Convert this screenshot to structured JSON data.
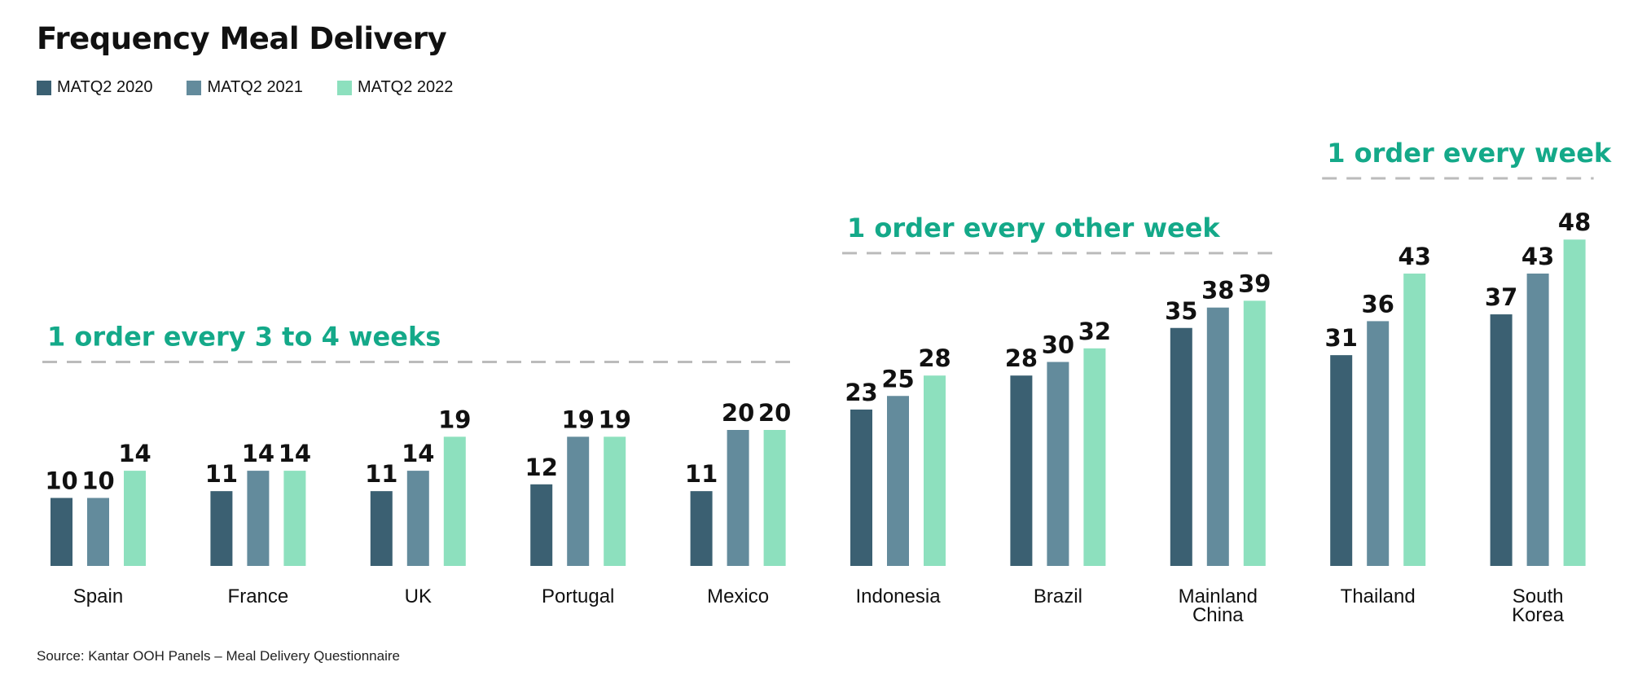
{
  "title": "Frequency Meal Delivery",
  "source": "Source: Kantar OOH Panels – Meal Delivery Questionnaire",
  "colors": {
    "series": [
      "#3b6072",
      "#638b9c",
      "#8de0be"
    ],
    "annotation": "#14a989",
    "dash": "#bbbbbb",
    "text": "#111111"
  },
  "chart_data": {
    "type": "bar",
    "title": "Frequency Meal Delivery",
    "categories": [
      "Spain",
      "France",
      "UK",
      "Portugal",
      "Mexico",
      "Indonesia",
      "Brazil",
      "Mainland China",
      "Thailand",
      "South Korea"
    ],
    "category_lines": [
      [
        "Spain"
      ],
      [
        "France"
      ],
      [
        "UK"
      ],
      [
        "Portugal"
      ],
      [
        "Mexico"
      ],
      [
        "Indonesia"
      ],
      [
        "Brazil"
      ],
      [
        "Mainland",
        "China"
      ],
      [
        "Thailand"
      ],
      [
        "South",
        "Korea"
      ]
    ],
    "series": [
      {
        "name": "MATQ2 2020",
        "color": "#3b6072",
        "values": [
          10,
          11,
          11,
          12,
          11,
          23,
          28,
          35,
          31,
          37
        ]
      },
      {
        "name": "MATQ2 2021",
        "color": "#638b9c",
        "values": [
          10,
          14,
          14,
          19,
          20,
          25,
          30,
          38,
          36,
          43
        ]
      },
      {
        "name": "MATQ2 2022",
        "color": "#8de0be",
        "values": [
          14,
          14,
          19,
          19,
          20,
          28,
          32,
          39,
          43,
          48
        ]
      }
    ],
    "ylim": [
      0,
      48
    ],
    "grid": false,
    "data_labels": true,
    "legend_position": "top-left",
    "annotations": [
      {
        "text": "1 order every 3 to 4 weeks",
        "from_category": 0,
        "to_category": 4,
        "value": 30
      },
      {
        "text": "1 order every other week",
        "from_category": 5,
        "to_category": 7,
        "value": 46
      },
      {
        "text": "1 order every week",
        "from_category": 8,
        "to_category": 9,
        "value": 57
      }
    ]
  }
}
